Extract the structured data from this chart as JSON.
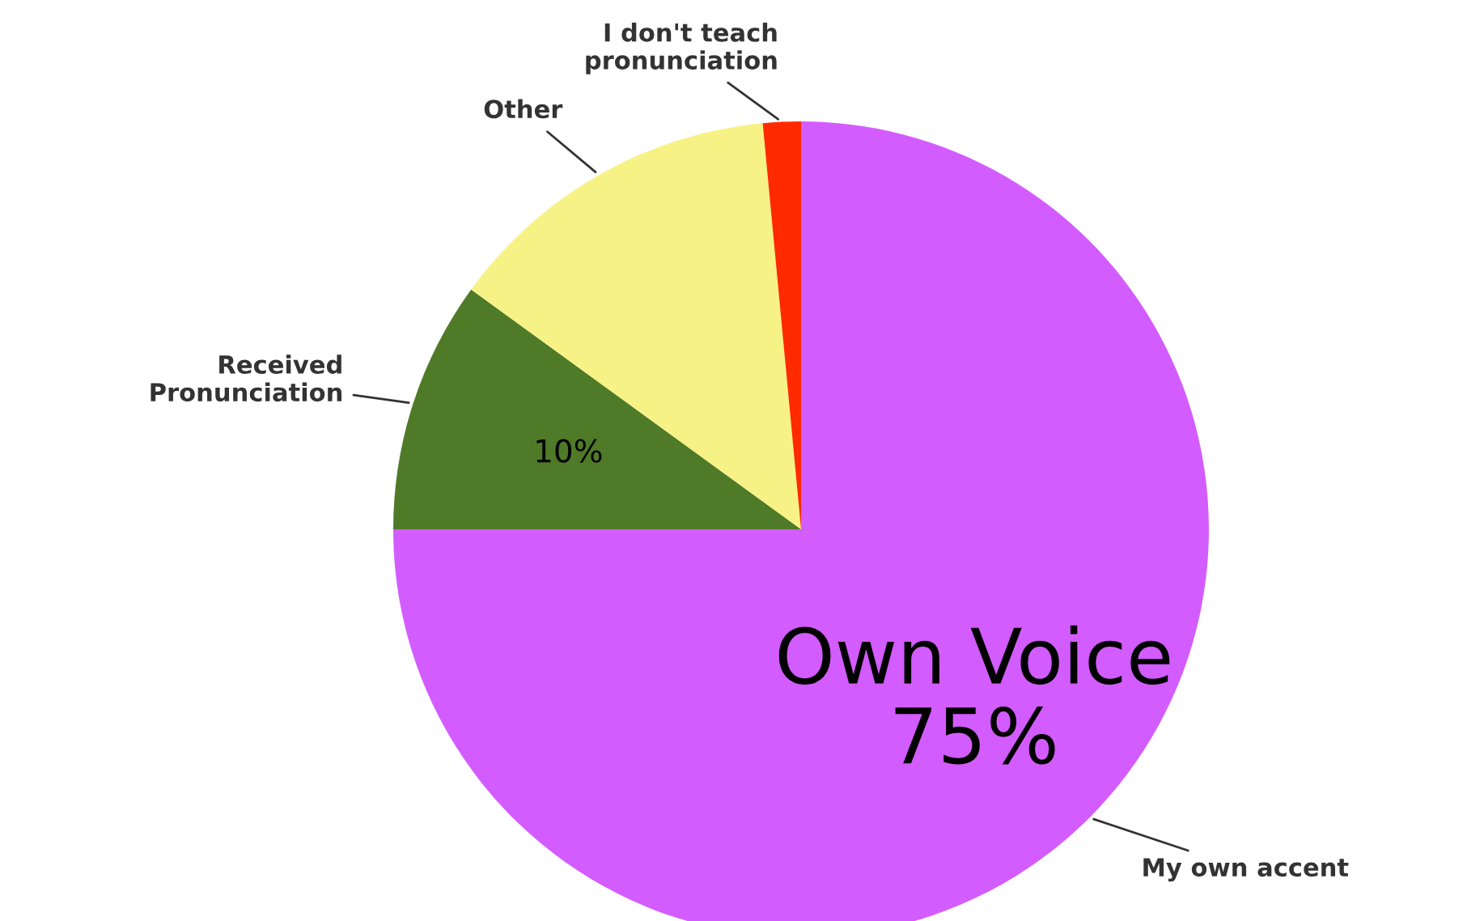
{
  "chart_data": {
    "type": "pie",
    "categories": [
      "My own accent",
      "Received\nPronunciation",
      "Other",
      "I don't teach\npronunciation"
    ],
    "values": [
      75,
      10,
      13.5,
      1.5
    ],
    "colors": [
      "#d35cff",
      "#4f7a28",
      "#f7f285",
      "#ff2a00"
    ],
    "value_labels": [
      "Own Voice\n75%",
      "10%",
      null,
      null
    ]
  }
}
